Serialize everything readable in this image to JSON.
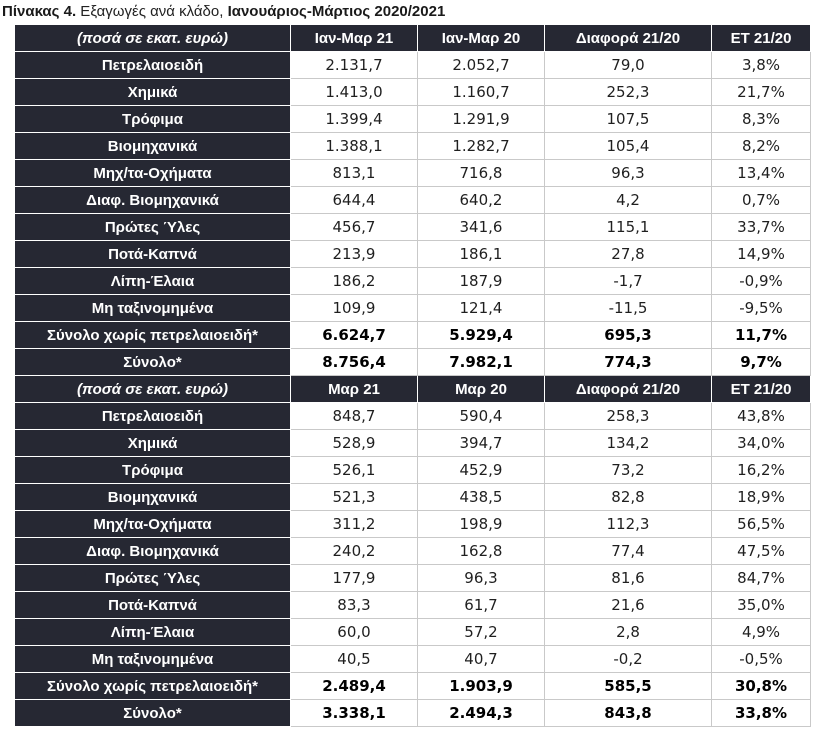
{
  "caption": {
    "label": "Πίνακας 4.",
    "subject": " Εξαγωγές ανά κλάδο, ",
    "period": "Ιανουάριος-Μάρτιος 2020/2021"
  },
  "tables": [
    {
      "headers": [
        "(ποσά σε εκατ. ευρώ)",
        "Ιαν-Μαρ 21",
        "Ιαν-Μαρ 20",
        "Διαφορά 21/20",
        "ΕΤ 21/20"
      ],
      "rows": [
        {
          "label": "Πετρελαιοειδή",
          "values": [
            "2.131,7",
            "2.052,7",
            "79,0",
            "3,8%"
          ],
          "bold": false
        },
        {
          "label": "Χημικά",
          "values": [
            "1.413,0",
            "1.160,7",
            "252,3",
            "21,7%"
          ],
          "bold": false
        },
        {
          "label": "Τρόφιμα",
          "values": [
            "1.399,4",
            "1.291,9",
            "107,5",
            "8,3%"
          ],
          "bold": false
        },
        {
          "label": "Βιομηχανικά",
          "values": [
            "1.388,1",
            "1.282,7",
            "105,4",
            "8,2%"
          ],
          "bold": false
        },
        {
          "label": "Μηχ/τα-Οχήματα",
          "values": [
            "813,1",
            "716,8",
            "96,3",
            "13,4%"
          ],
          "bold": false
        },
        {
          "label": "Διαφ. Βιομηχανικά",
          "values": [
            "644,4",
            "640,2",
            "4,2",
            "0,7%"
          ],
          "bold": false
        },
        {
          "label": "Πρώτες Ύλες",
          "values": [
            "456,7",
            "341,6",
            "115,1",
            "33,7%"
          ],
          "bold": false
        },
        {
          "label": "Ποτά-Καπνά",
          "values": [
            "213,9",
            "186,1",
            "27,8",
            "14,9%"
          ],
          "bold": false
        },
        {
          "label": "Λίπη-Έλαια",
          "values": [
            "186,2",
            "187,9",
            "-1,7",
            "-0,9%"
          ],
          "bold": false
        },
        {
          "label": "Μη ταξινομημένα",
          "values": [
            "109,9",
            "121,4",
            "-11,5",
            "-9,5%"
          ],
          "bold": false
        },
        {
          "label": "Σύνολο χωρίς πετρελαιοειδή*",
          "values": [
            "6.624,7",
            "5.929,4",
            "695,3",
            "11,7%"
          ],
          "bold": true
        },
        {
          "label": "Σύνολο*",
          "values": [
            "8.756,4",
            "7.982,1",
            "774,3",
            "9,7%"
          ],
          "bold": true
        }
      ]
    },
    {
      "headers": [
        "(ποσά σε εκατ. ευρώ)",
        "Μαρ 21",
        "Μαρ 20",
        "Διαφορά 21/20",
        "ΕΤ 21/20"
      ],
      "rows": [
        {
          "label": "Πετρελαιοειδή",
          "values": [
            "848,7",
            "590,4",
            "258,3",
            "43,8%"
          ],
          "bold": false
        },
        {
          "label": "Χημικά",
          "values": [
            "528,9",
            "394,7",
            "134,2",
            "34,0%"
          ],
          "bold": false
        },
        {
          "label": "Τρόφιμα",
          "values": [
            "526,1",
            "452,9",
            "73,2",
            "16,2%"
          ],
          "bold": false
        },
        {
          "label": "Βιομηχανικά",
          "values": [
            "521,3",
            "438,5",
            "82,8",
            "18,9%"
          ],
          "bold": false
        },
        {
          "label": "Μηχ/τα-Οχήματα",
          "values": [
            "311,2",
            "198,9",
            "112,3",
            "56,5%"
          ],
          "bold": false
        },
        {
          "label": "Διαφ. Βιομηχανικά",
          "values": [
            "240,2",
            "162,8",
            "77,4",
            "47,5%"
          ],
          "bold": false
        },
        {
          "label": "Πρώτες Ύλες",
          "values": [
            "177,9",
            "96,3",
            "81,6",
            "84,7%"
          ],
          "bold": false
        },
        {
          "label": "Ποτά-Καπνά",
          "values": [
            "83,3",
            "61,7",
            "21,6",
            "35,0%"
          ],
          "bold": false
        },
        {
          "label": "Λίπη-Έλαια",
          "values": [
            "60,0",
            "57,2",
            "2,8",
            "4,9%"
          ],
          "bold": false
        },
        {
          "label": "Μη ταξινομημένα",
          "values": [
            "40,5",
            "40,7",
            "-0,2",
            "-0,5%"
          ],
          "bold": false
        },
        {
          "label": "Σύνολο χωρίς πετρελαιοειδή*",
          "values": [
            "2.489,4",
            "1.903,9",
            "585,5",
            "30,8%"
          ],
          "bold": true
        },
        {
          "label": "Σύνολο*",
          "values": [
            "3.338,1",
            "2.494,3",
            "843,8",
            "33,8%"
          ],
          "bold": true
        }
      ]
    }
  ]
}
